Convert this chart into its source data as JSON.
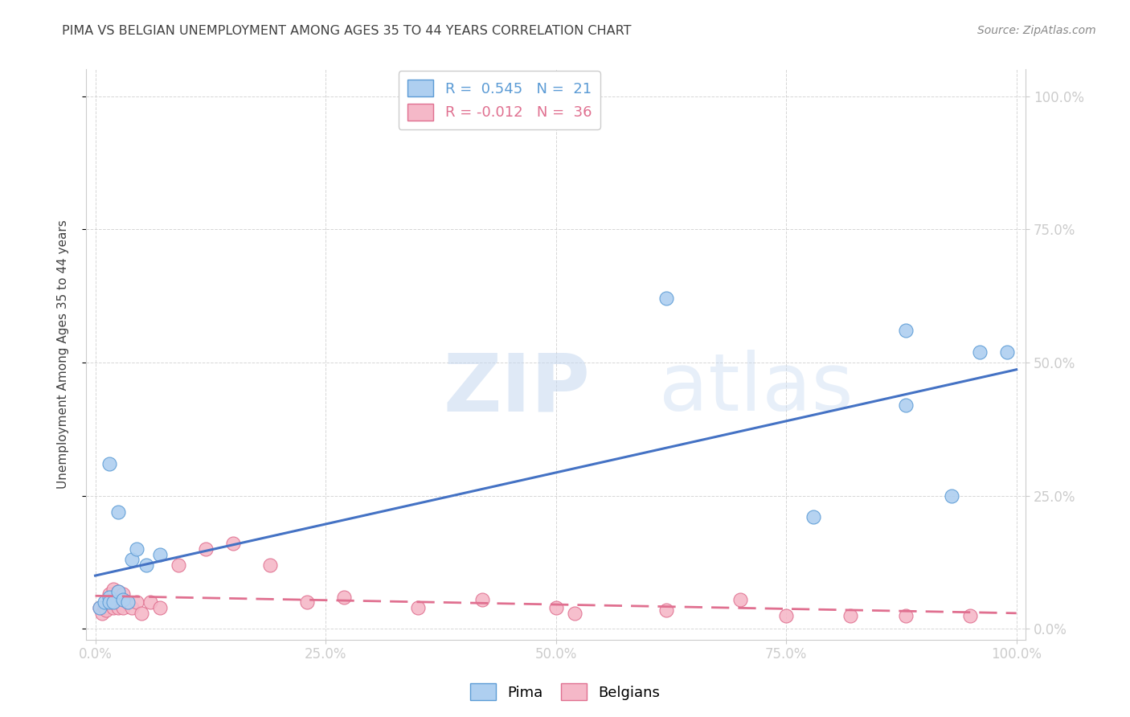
{
  "title": "PIMA VS BELGIAN UNEMPLOYMENT AMONG AGES 35 TO 44 YEARS CORRELATION CHART",
  "source": "Source: ZipAtlas.com",
  "ylabel": "Unemployment Among Ages 35 to 44 years",
  "watermark": "ZIPatlas",
  "xlim": [
    -0.01,
    1.01
  ],
  "ylim": [
    -0.02,
    1.05
  ],
  "xtick_vals": [
    0,
    0.25,
    0.5,
    0.75,
    1.0
  ],
  "xtick_labels": [
    "0.0%",
    "25.0%",
    "50.0%",
    "75.0%",
    "100.0%"
  ],
  "ytick_vals": [
    0,
    0.25,
    0.5,
    0.75,
    1.0
  ],
  "ytick_labels": [
    "0.0%",
    "25.0%",
    "50.0%",
    "75.0%",
    "100.0%"
  ],
  "pima_color": "#aecff0",
  "pima_edge_color": "#5b9bd5",
  "belgians_color": "#f5b8c8",
  "belgians_edge_color": "#e07090",
  "regression_pima_color": "#4472c4",
  "regression_belgians_color": "#e07090",
  "legend_R_pima": " 0.545",
  "legend_N_pima": " 21",
  "legend_R_belgians": "-0.012",
  "legend_N_belgians": " 36",
  "pima_x": [
    0.005,
    0.01,
    0.015,
    0.015,
    0.02,
    0.025,
    0.03,
    0.035,
    0.04,
    0.045,
    0.055,
    0.07,
    0.015,
    0.025,
    0.62,
    0.78,
    0.88,
    0.88,
    0.93,
    0.96,
    0.99
  ],
  "pima_y": [
    0.04,
    0.05,
    0.06,
    0.05,
    0.05,
    0.07,
    0.055,
    0.05,
    0.13,
    0.15,
    0.12,
    0.14,
    0.31,
    0.22,
    0.62,
    0.21,
    0.42,
    0.56,
    0.25,
    0.52,
    0.52
  ],
  "belgians_x": [
    0.005,
    0.007,
    0.01,
    0.012,
    0.015,
    0.018,
    0.02,
    0.022,
    0.025,
    0.03,
    0.035,
    0.04,
    0.045,
    0.05,
    0.06,
    0.07,
    0.09,
    0.12,
    0.15,
    0.19,
    0.23,
    0.27,
    0.35,
    0.42,
    0.5,
    0.52,
    0.62,
    0.7,
    0.75,
    0.82,
    0.88,
    0.95,
    0.015,
    0.02,
    0.025,
    0.03
  ],
  "belgians_y": [
    0.04,
    0.03,
    0.04,
    0.035,
    0.05,
    0.06,
    0.04,
    0.05,
    0.04,
    0.04,
    0.05,
    0.04,
    0.05,
    0.03,
    0.05,
    0.04,
    0.12,
    0.15,
    0.16,
    0.12,
    0.05,
    0.06,
    0.04,
    0.055,
    0.04,
    0.03,
    0.035,
    0.055,
    0.025,
    0.025,
    0.025,
    0.025,
    0.065,
    0.075,
    0.07,
    0.065
  ],
  "marker_size": 150,
  "background_color": "#ffffff",
  "title_color": "#404040",
  "axis_label_color": "#404040",
  "tick_color": "#5b9bd5",
  "grid_color": "#cccccc"
}
